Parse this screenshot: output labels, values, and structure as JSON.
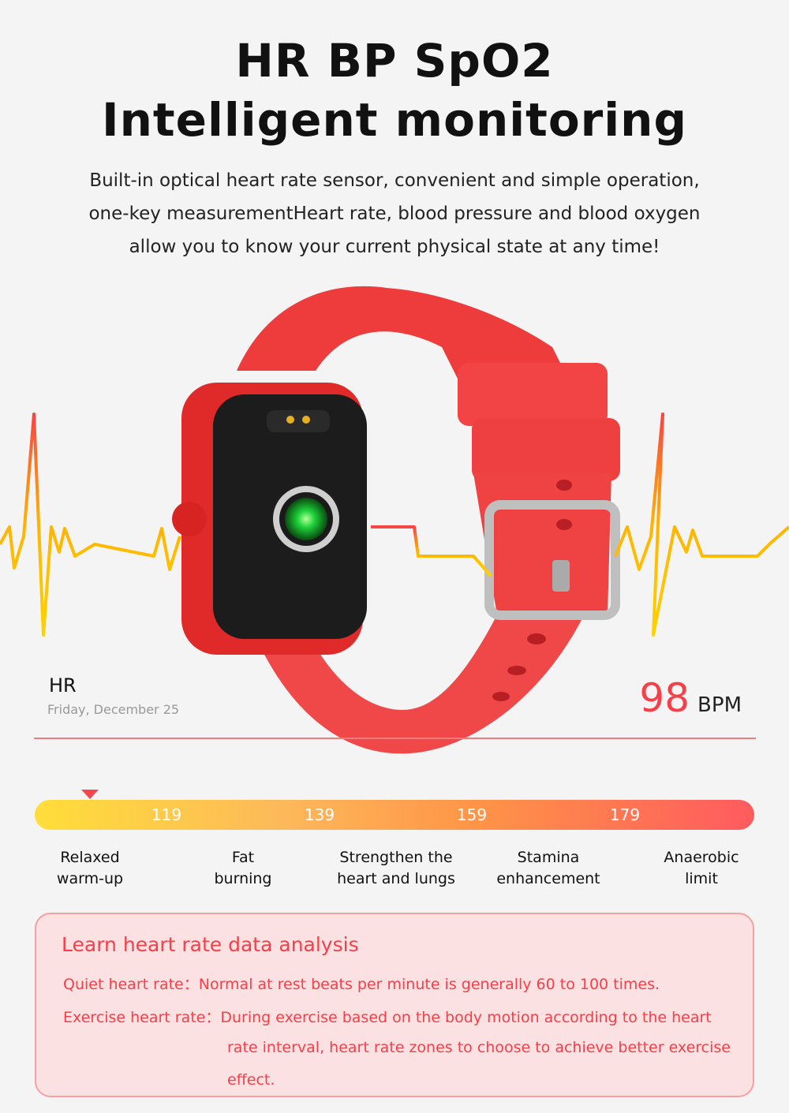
{
  "header": {
    "title_line1": "HR BP SpO2",
    "title_line2": "Intelligent monitoring",
    "description": [
      "Built-in optical heart rate sensor, convenient and simple operation,",
      "one-key measurementHeart rate, blood pressure and blood oxygen",
      "allow you to know your current physical state at any time!"
    ]
  },
  "reading": {
    "label": "HR",
    "date": "Friday, December 25",
    "value": "98",
    "unit": "BPM",
    "color": "#f5404a"
  },
  "zones": {
    "ticks": [
      "119",
      "139",
      "159",
      "179"
    ],
    "labels": [
      [
        "Relaxed",
        "warm-up"
      ],
      [
        "Fat",
        "burning"
      ],
      [
        "Strengthen the",
        "heart and lungs"
      ],
      [
        "Stamina",
        "enhancement"
      ],
      [
        "Anaerobic",
        "limit"
      ]
    ],
    "current_zone_index": 0
  },
  "analysis": {
    "title": "Learn heart rate data analysis",
    "quiet_label": "Quiet heart rate：",
    "quiet_text": "Normal at rest beats per minute is generally 60 to 100 times.",
    "exercise_label": "Exercise heart rate：",
    "exercise_lines": [
      "During exercise based on the body motion according to the heart",
      "rate interval, heart rate zones to choose to achieve better exercise",
      "effect."
    ]
  }
}
